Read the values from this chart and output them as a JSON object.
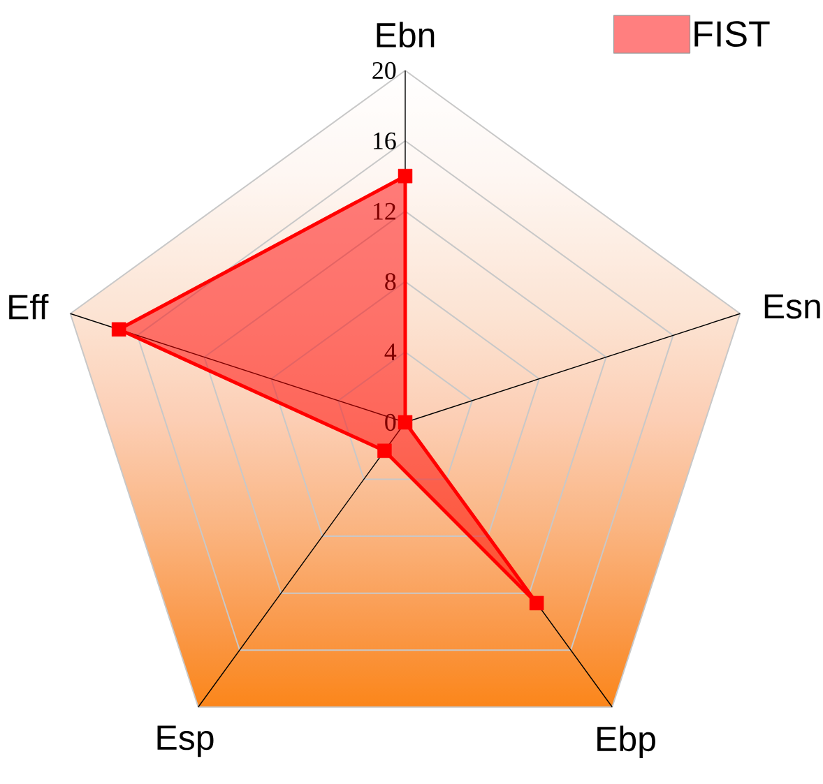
{
  "chart_data": {
    "type": "radar",
    "categories": [
      "Ebn",
      "Esn",
      "Ebp",
      "Esp",
      "Eff"
    ],
    "series": [
      {
        "name": "FIST",
        "color": "#ff0000",
        "values": [
          14,
          0,
          12.7,
          2,
          17.1
        ]
      }
    ],
    "ylim": [
      0,
      20
    ],
    "yticks": [
      0,
      4,
      8,
      12,
      16,
      20
    ],
    "grid": true,
    "legend": "top right",
    "marker": "square",
    "line_style": "solid"
  }
}
